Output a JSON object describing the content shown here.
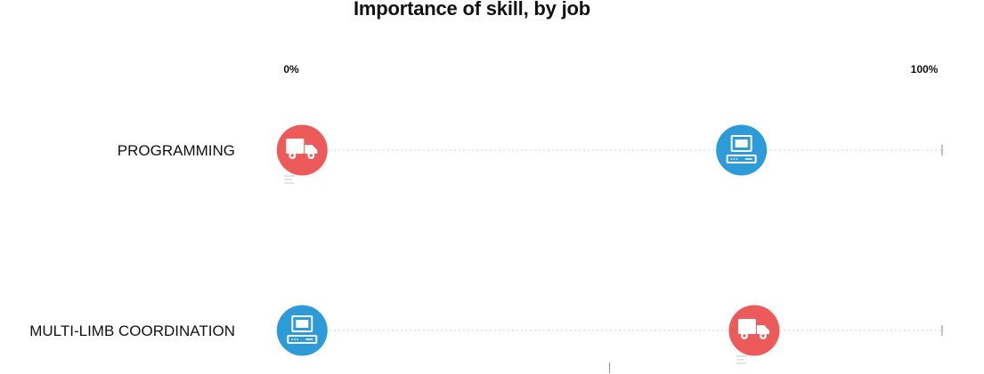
{
  "chart_data": {
    "type": "scatter",
    "title": "Importance of skill, by job",
    "xlim": [
      0,
      100
    ],
    "x_ticks": [
      "0%",
      "100%"
    ],
    "categories": [
      "PROGRAMMING",
      "MULTI-LIMB COORDINATION"
    ],
    "series": [
      {
        "icon": "delivery-truck-icon",
        "color": "#ec5a5a",
        "values": [
          2,
          73
        ]
      },
      {
        "icon": "computer-icon",
        "color": "#2e9bd9",
        "values": [
          71,
          2
        ]
      }
    ],
    "grid": false,
    "legend": "none"
  }
}
